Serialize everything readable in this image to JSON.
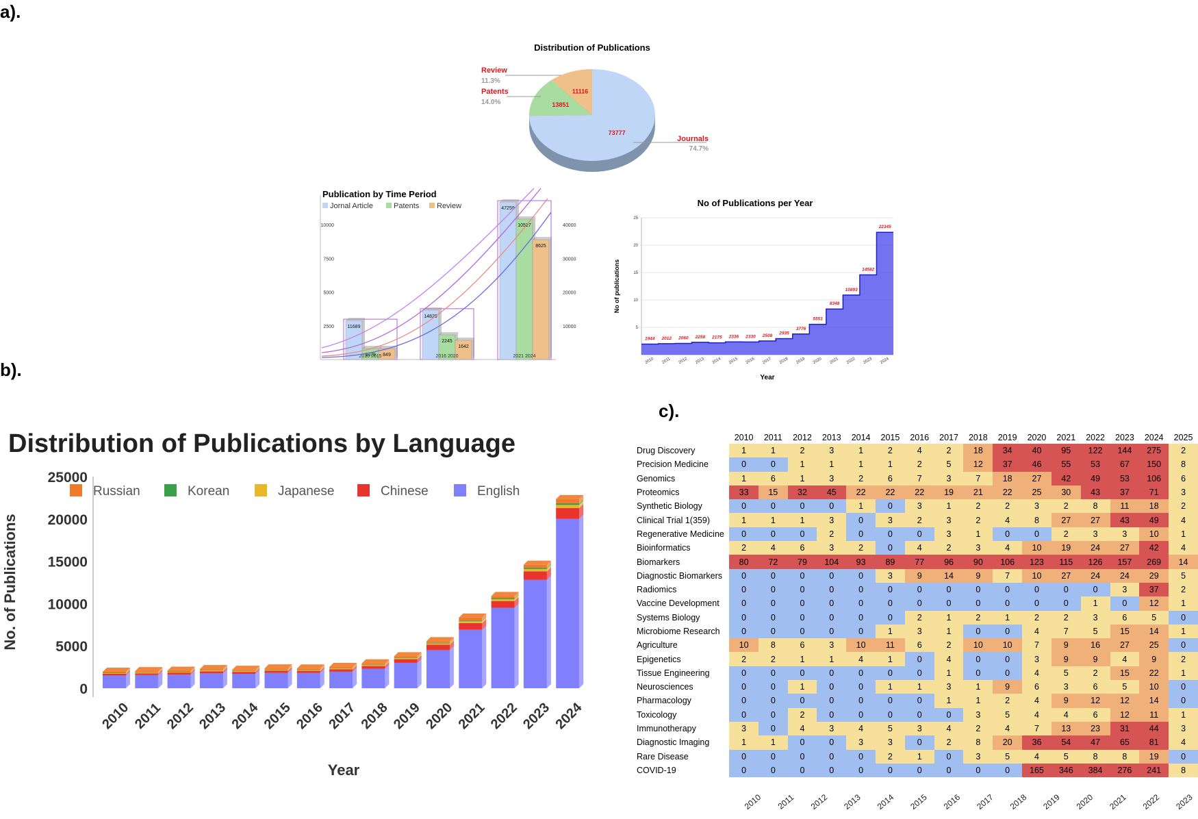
{
  "panel_labels": {
    "a": "a).",
    "b": "b).",
    "c": "c)."
  },
  "colors": {
    "journals": "#c0d6f6",
    "patents": "#a8dca0",
    "review": "#efc08a",
    "label_red": "#e0161b",
    "area_blue": "#5a5af0",
    "english": "#8080ff",
    "chinese": "#e8332f",
    "japanese": "#e6b82a",
    "korean": "#3aa14a",
    "russian": "#f07a2a",
    "heat_blue": "#a0bef0",
    "heat_yellow": "#f6e09a",
    "heat_orange": "#f0b07a",
    "heat_red": "#d75454"
  },
  "chart_data": [
    {
      "id": "pie",
      "type": "pie",
      "title": "Distribution of Publications",
      "slices": [
        {
          "name": "Journals",
          "value": 73777,
          "percent": "74.7%"
        },
        {
          "name": "Patents",
          "value": 13851,
          "percent": "14.0%"
        },
        {
          "name": "Review",
          "value": 11116,
          "percent": "11.3%"
        }
      ]
    },
    {
      "id": "period",
      "type": "bar",
      "title": "Publication by Time Period",
      "legend": [
        "Jornal Article",
        "Patents",
        "Review"
      ],
      "categories": [
        "2010 2015",
        "2016 2020",
        "2021 2024"
      ],
      "series": [
        {
          "name": "Jornal Article",
          "values": [
            11689,
            14829,
            47259
          ]
        },
        {
          "name": "Patents",
          "values": [
            1079,
            2245,
            10527
          ]
        },
        {
          "name": "Review",
          "values": [
            849,
            1642,
            8625
          ]
        }
      ],
      "left_ticks": [
        "2500",
        "5000",
        "7500",
        "10000"
      ],
      "right_ticks": [
        "10000",
        "20000",
        "30000",
        "40000"
      ]
    },
    {
      "id": "yearly",
      "type": "area",
      "title": "No of Publications per Year",
      "xlabel": "Year",
      "ylabel": "No of publications",
      "x": [
        "2010",
        "2011",
        "2012",
        "2013",
        "2014",
        "2015",
        "2016",
        "2017",
        "2018",
        "2019",
        "2020",
        "2021",
        "2022",
        "2023",
        "2024"
      ],
      "values": [
        1944,
        2012,
        2060,
        2258,
        2175,
        2336,
        2330,
        2508,
        2935,
        3776,
        5551,
        8348,
        10893,
        14582,
        22345
      ],
      "yticks": [
        "5",
        "10",
        "15",
        "20",
        "25"
      ],
      "ylim": [
        0,
        25
      ]
    },
    {
      "id": "language",
      "type": "bar",
      "title": "Distribution of Publications by Language",
      "xlabel": "Year",
      "ylabel": "No. of Publications",
      "categories": [
        "2010",
        "2011",
        "2012",
        "2013",
        "2014",
        "2015",
        "2016",
        "2017",
        "2018",
        "2019",
        "2020",
        "2021",
        "2022",
        "2023",
        "2024"
      ],
      "yticks": [
        0,
        5000,
        10000,
        15000,
        20000,
        25000
      ],
      "ylim": [
        0,
        25000
      ],
      "legend": [
        "Russian",
        "Korean",
        "Japanese",
        "Chinese",
        "English"
      ],
      "series": [
        {
          "name": "English",
          "values": [
            1500,
            1550,
            1600,
            1750,
            1700,
            1800,
            1800,
            1950,
            2300,
            3000,
            4500,
            6900,
            9500,
            12800,
            20000
          ]
        },
        {
          "name": "Chinese",
          "values": [
            200,
            200,
            220,
            250,
            230,
            260,
            250,
            280,
            320,
            430,
            650,
            800,
            800,
            1000,
            1300
          ]
        },
        {
          "name": "Japanese",
          "values": [
            80,
            80,
            80,
            90,
            80,
            90,
            90,
            90,
            100,
            120,
            130,
            200,
            220,
            280,
            350
          ]
        },
        {
          "name": "Korean",
          "values": [
            40,
            40,
            40,
            40,
            40,
            40,
            40,
            40,
            50,
            60,
            70,
            100,
            120,
            150,
            200
          ]
        },
        {
          "name": "Russian",
          "values": [
            124,
            142,
            120,
            128,
            125,
            146,
            150,
            148,
            165,
            166,
            201,
            348,
            253,
            352,
            495
          ]
        }
      ]
    },
    {
      "id": "heatmap",
      "type": "heatmap",
      "columns": [
        "2010",
        "2011",
        "2012",
        "2013",
        "2014",
        "2015",
        "2016",
        "2017",
        "2018",
        "2019",
        "2020",
        "2021",
        "2022",
        "2023",
        "2024",
        "2025"
      ],
      "rows": [
        {
          "label": "Drug Discovery",
          "values": [
            1,
            1,
            2,
            3,
            1,
            2,
            4,
            2,
            18,
            34,
            40,
            95,
            122,
            144,
            275,
            2
          ]
        },
        {
          "label": "Precision Medicine",
          "values": [
            0,
            0,
            1,
            1,
            1,
            1,
            2,
            5,
            12,
            37,
            46,
            55,
            53,
            67,
            150,
            8
          ]
        },
        {
          "label": "Genomics",
          "values": [
            1,
            6,
            1,
            3,
            2,
            6,
            7,
            3,
            7,
            18,
            27,
            42,
            49,
            53,
            106,
            6
          ]
        },
        {
          "label": " Proteomics",
          "values": [
            33,
            15,
            32,
            45,
            22,
            22,
            22,
            19,
            21,
            22,
            25,
            30,
            43,
            37,
            71,
            3
          ]
        },
        {
          "label": "Synthetic Biology",
          "values": [
            0,
            0,
            0,
            0,
            1,
            0,
            3,
            1,
            2,
            2,
            3,
            2,
            8,
            11,
            18,
            2
          ]
        },
        {
          "label": "Clinical Trial 1(359)",
          "values": [
            1,
            1,
            1,
            3,
            0,
            3,
            2,
            3,
            2,
            4,
            8,
            27,
            27,
            43,
            49,
            4
          ]
        },
        {
          "label": "Regenerative Medicine",
          "values": [
            0,
            0,
            0,
            2,
            0,
            0,
            0,
            3,
            1,
            0,
            0,
            2,
            3,
            3,
            10,
            1
          ]
        },
        {
          "label": "Bioinformatics",
          "values": [
            2,
            4,
            6,
            3,
            2,
            0,
            4,
            2,
            3,
            4,
            10,
            19,
            24,
            27,
            42,
            4
          ]
        },
        {
          "label": "Biomarkers",
          "values": [
            80,
            72,
            79,
            104,
            93,
            89,
            77,
            96,
            90,
            106,
            123,
            115,
            126,
            157,
            269,
            14
          ]
        },
        {
          "label": "Diagnostic Biomarkers",
          "values": [
            0,
            0,
            0,
            0,
            0,
            3,
            9,
            14,
            9,
            7,
            10,
            27,
            24,
            24,
            29,
            5
          ]
        },
        {
          "label": "Radiomics",
          "values": [
            0,
            0,
            0,
            0,
            0,
            0,
            0,
            0,
            0,
            0,
            0,
            0,
            0,
            3,
            37,
            2
          ]
        },
        {
          "label": "Vaccine Development",
          "values": [
            0,
            0,
            0,
            0,
            0,
            0,
            0,
            0,
            0,
            0,
            0,
            0,
            1,
            0,
            12,
            1
          ]
        },
        {
          "label": "Systems Biology",
          "values": [
            0,
            0,
            0,
            0,
            0,
            0,
            2,
            1,
            2,
            1,
            2,
            2,
            3,
            6,
            5,
            0
          ]
        },
        {
          "label": "Microbiome Research",
          "values": [
            0,
            0,
            0,
            0,
            0,
            1,
            3,
            1,
            0,
            0,
            4,
            7,
            5,
            15,
            14,
            1
          ]
        },
        {
          "label": "Agriculture",
          "values": [
            10,
            8,
            6,
            3,
            10,
            11,
            6,
            2,
            10,
            10,
            7,
            9,
            16,
            27,
            25,
            0
          ]
        },
        {
          "label": "Epigenetics",
          "values": [
            2,
            2,
            1,
            1,
            4,
            1,
            0,
            4,
            0,
            0,
            3,
            9,
            9,
            4,
            9,
            2
          ]
        },
        {
          "label": "Tissue Engineering",
          "values": [
            0,
            0,
            0,
            0,
            0,
            0,
            0,
            1,
            0,
            0,
            4,
            5,
            2,
            15,
            22,
            1
          ]
        },
        {
          "label": "Neurosciences",
          "values": [
            0,
            0,
            1,
            0,
            0,
            1,
            1,
            3,
            1,
            9,
            6,
            3,
            6,
            5,
            10,
            0
          ]
        },
        {
          "label": "Pharmacology",
          "values": [
            0,
            0,
            0,
            0,
            0,
            0,
            0,
            1,
            1,
            2,
            4,
            9,
            12,
            12,
            14,
            0
          ]
        },
        {
          "label": "Toxicology",
          "values": [
            0,
            0,
            2,
            0,
            0,
            0,
            0,
            0,
            3,
            5,
            4,
            4,
            6,
            12,
            11,
            1
          ]
        },
        {
          "label": "Immunotherapy",
          "values": [
            3,
            0,
            4,
            3,
            4,
            5,
            3,
            4,
            2,
            4,
            7,
            13,
            23,
            31,
            44,
            3
          ]
        },
        {
          "label": "Diagnostic Imaging",
          "values": [
            1,
            1,
            0,
            0,
            3,
            3,
            0,
            2,
            8,
            20,
            36,
            54,
            47,
            65,
            81,
            4
          ]
        },
        {
          "label": "Rare Disease",
          "values": [
            0,
            0,
            0,
            0,
            0,
            2,
            1,
            0,
            3,
            5,
            4,
            5,
            8,
            8,
            19,
            0
          ]
        },
        {
          "label": "COVID-19",
          "values": [
            0,
            0,
            0,
            0,
            0,
            0,
            0,
            0,
            0,
            0,
            165,
            346,
            384,
            276,
            241,
            8
          ]
        }
      ]
    }
  ]
}
